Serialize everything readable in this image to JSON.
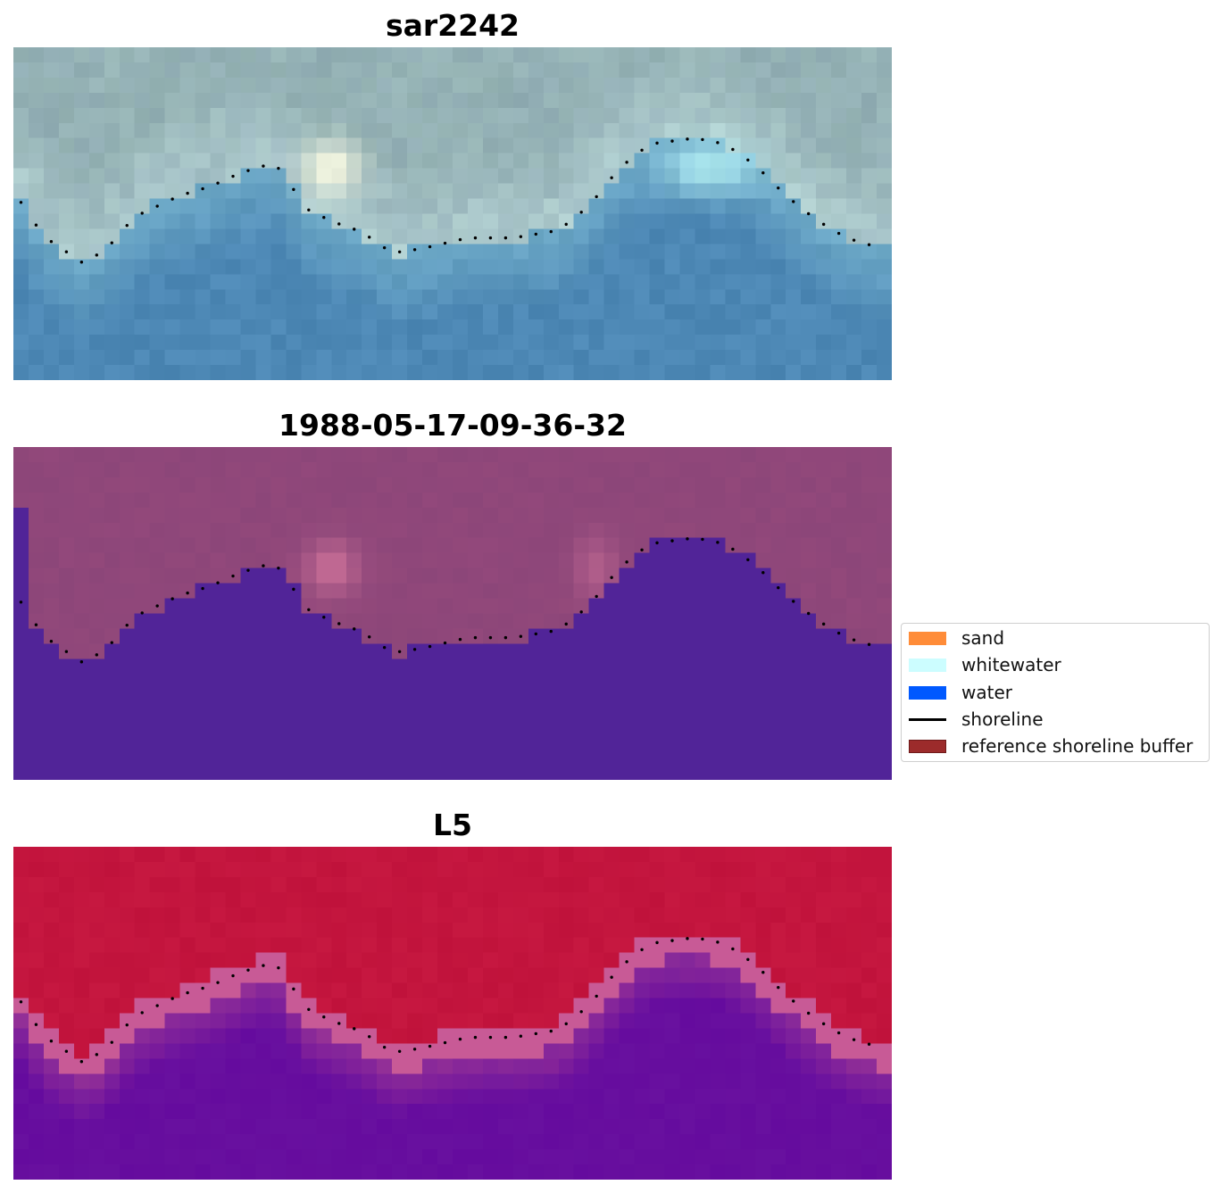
{
  "panels": [
    {
      "title": "sar2242",
      "kind": "rgb"
    },
    {
      "title": "1988-05-17-09-36-32",
      "kind": "classified"
    },
    {
      "title": "L5",
      "kind": "index"
    }
  ],
  "legend": {
    "items": [
      {
        "label": "sand",
        "type": "patch",
        "color": "#ff8c38"
      },
      {
        "label": "whitewater",
        "type": "patch",
        "color": "#ccfdff"
      },
      {
        "label": "water",
        "type": "patch",
        "color": "#0059ff"
      },
      {
        "label": "shoreline",
        "type": "line",
        "color": "#000000"
      },
      {
        "label": "reference shoreline buffer",
        "type": "patch",
        "color": "#9c2b2b",
        "border": "#6e1a1a"
      }
    ]
  },
  "colors": {
    "rgb_water": "#4d88b5",
    "rgb_land": "#97b5b5",
    "class_land": "#8c4679",
    "class_water": "#512498",
    "index_land": "#c0123b",
    "index_water": "#650b9e",
    "shoreline": "#000000"
  }
}
